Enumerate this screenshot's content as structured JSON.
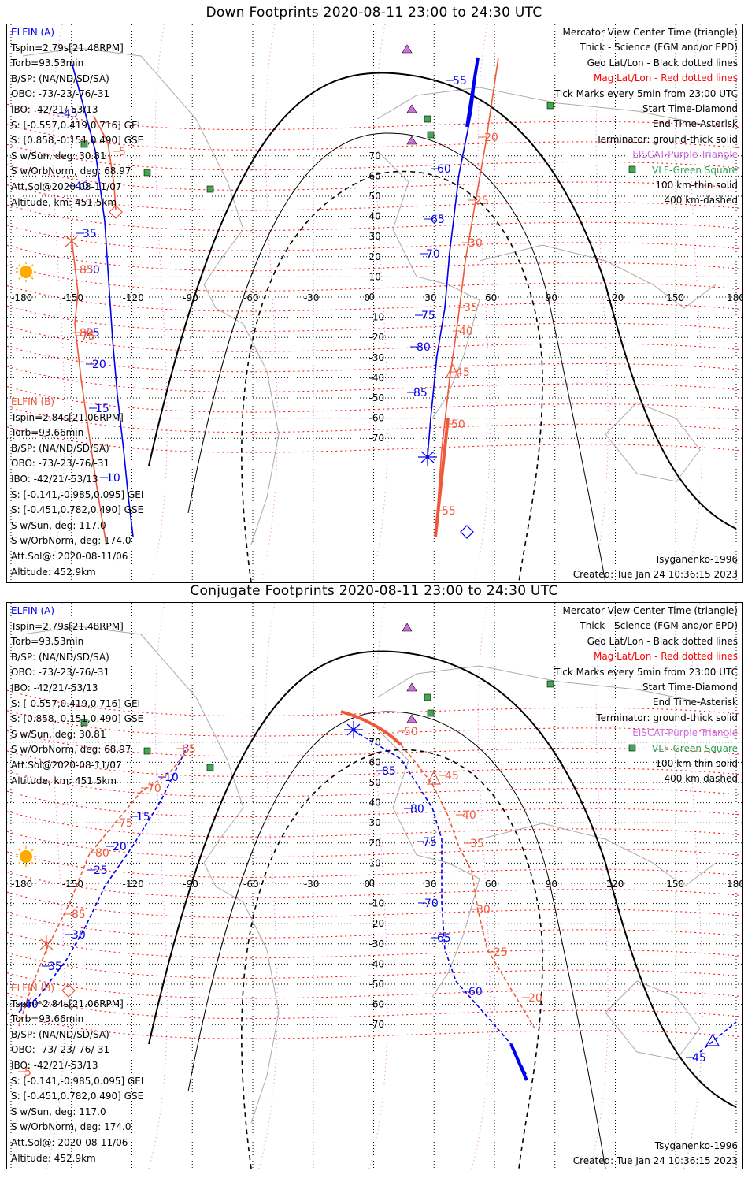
{
  "titles": {
    "down": "Down Footprints 2020-08-11 23:00 to 24:30 UTC",
    "conjugate": "Conjugate Footprints 2020-08-11 23:00 to 24:30 UTC"
  },
  "elfin_a": {
    "name": "ELFIN (A)",
    "lines": [
      "Tspin=2.79s[21.48RPM]",
      "Torb=93.53min",
      "B/SP: (NA/ND/SD/SA)",
      "OBO: -73/-23/-76/-31",
      "IBO: -42/21/-53/13",
      "S: [-0.557,0.419,0.716] GEI",
      "S: [0.858,-0.151,0.490] GSE",
      "S w/Sun, deg: 30.81",
      "S w/OrbNorm, deg: 68.97",
      "Att.Sol@2020-08-11/07",
      "Altitude, km: 451.5km"
    ]
  },
  "elfin_b": {
    "name": "ELFIN (B)",
    "lines": [
      "Tspin=2.84s[21.06RPM]",
      "Torb=93.66min",
      "B/SP: (NA/ND/SD/SA)",
      "OBO: -73/-23/-76/-31",
      "IBO: -42/21/-53/13",
      "S: [-0.141,-0.985,0.095] GEI",
      "S: [-0.451,0.782,0.490] GSE",
      "S w/Sun, deg: 117.0",
      "S w/OrbNorm, deg: 174.0",
      "Att.Sol@: 2020-08-11/06",
      "Altitude: 452.9km"
    ]
  },
  "legend": [
    {
      "text": "Mercator View Center Time (triangle)",
      "color": "#000000"
    },
    {
      "text": "Thick - Science (FGM and/or EPD)",
      "color": "#000000"
    },
    {
      "text": "Geo Lat/Lon - Black dotted lines",
      "color": "#000000"
    },
    {
      "text": "Mag Lat/Lon - Red dotted lines",
      "color": "#ff0000"
    },
    {
      "text": "Tick Marks every 5min from 23:00 UTC",
      "color": "#000000"
    },
    {
      "text": "Start Time-Diamond",
      "color": "#000000"
    },
    {
      "text": "End Time-Asterisk",
      "color": "#000000"
    },
    {
      "text": "Terminator: ground-thick solid",
      "color": "#000000"
    },
    {
      "text": "EISCAT-Purple Triangle",
      "color": "#d070e0"
    },
    {
      "text": "VLF-Green Square",
      "color": "#30a050"
    },
    {
      "text": "100 km-thin solid",
      "color": "#000000"
    },
    {
      "text": "400 km-dashed",
      "color": "#000000"
    }
  ],
  "model": "Tsyganenko-1996",
  "created": "Created: Tue Jan 24 10:36:15 2023",
  "axes": {
    "lon_ticks": [
      "-180",
      "-150",
      "-120",
      "-90",
      "-60",
      "-30",
      "0",
      "30",
      "60",
      "90",
      "120",
      "150",
      "180"
    ],
    "lat_ticks": [
      "70",
      "60",
      "50",
      "40",
      "30",
      "20",
      "10",
      "0",
      "-10",
      "-20",
      "-30",
      "-40",
      "-50",
      "-60",
      "-70"
    ]
  },
  "tick_labels": {
    "down_a": [
      "55",
      "60",
      "65",
      "70",
      "75",
      "80",
      "85",
      "45",
      "40",
      "35",
      "30",
      "25",
      "20",
      "15",
      "10"
    ],
    "down_b": [
      "20",
      "25",
      "30",
      "35",
      "40",
      "45",
      "50",
      "55",
      "5",
      "85",
      "80",
      "75"
    ],
    "conj_a": [
      "85",
      "80",
      "75",
      "70",
      "65",
      "60",
      "10",
      "15",
      "20",
      "25",
      "30",
      "35",
      "40",
      "45"
    ],
    "conj_b": [
      "50",
      "45",
      "40",
      "35",
      "30",
      "25",
      "20",
      "65",
      "70",
      "75",
      "80",
      "85",
      "5"
    ]
  },
  "colors": {
    "elfin_a": "#0000ee",
    "elfin_b": "#f0583a",
    "mag_grid": "#ff0000",
    "geo_grid": "#000000",
    "eiscat": "#d070e0",
    "vlf": "#30a050",
    "sun": "#ffaa00"
  }
}
